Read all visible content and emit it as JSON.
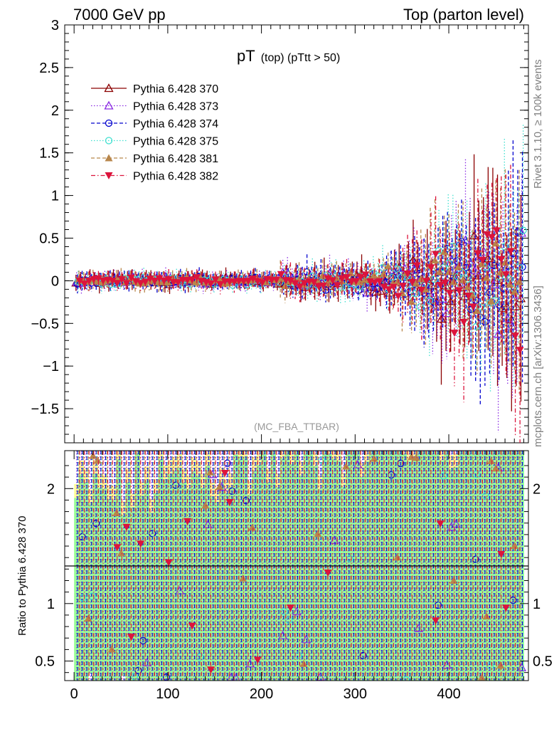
{
  "header": {
    "left": "7000 GeV pp",
    "right": "Top (parton level)"
  },
  "side_texts": {
    "upper": "Rivet 3.1.10, ≥ 100k events",
    "lower": "mcplots.cern.ch [arXiv:1306.3436]"
  },
  "chart_data": [
    {
      "type": "scatter",
      "title": "pT",
      "title_sub": "(top)  (pTtt > 50)",
      "analysis_label": "(MC_FBA_TTBAR)",
      "xlim": [
        -10,
        485
      ],
      "ylim": [
        -1.9,
        3.0
      ],
      "y_ticks": [
        3,
        2.5,
        2,
        1.5,
        1,
        0.5,
        0,
        -0.5,
        -1,
        -1.5
      ],
      "y_tick_labels": [
        "3",
        "2.5",
        "2",
        "1.5",
        "1",
        "0.5",
        "0",
        "−0.5",
        "−1",
        "−1.5"
      ],
      "legend_position": "top-left",
      "series": [
        {
          "name": "Pythia 6.428 370",
          "color": "#8b0000",
          "marker": "triangle-up-open",
          "dash": "solid"
        },
        {
          "name": "Pythia 6.428 373",
          "color": "#8a2be2",
          "marker": "triangle-up-open",
          "dash": "dot"
        },
        {
          "name": "Pythia 6.428 374",
          "color": "#0000cd",
          "marker": "circle-open",
          "dash": "dash"
        },
        {
          "name": "Pythia 6.428 375",
          "color": "#40e0d0",
          "marker": "circle-open",
          "dash": "dot"
        },
        {
          "name": "Pythia 6.428 381",
          "color": "#b8864b",
          "marker": "triangle-up-filled",
          "dash": "dash"
        },
        {
          "name": "Pythia 6.428 382",
          "color": "#dc143c",
          "marker": "triangle-down-filled",
          "dash": "dashdot"
        }
      ]
    },
    {
      "type": "scatter",
      "ylabel": "Ratio to Pythia 6.428 370",
      "xlim": [
        -10,
        485
      ],
      "ylim": [
        0.33,
        2.33
      ],
      "x_ticks": [
        0,
        100,
        200,
        300,
        400
      ],
      "x_tick_labels": [
        "0",
        "100",
        "200",
        "300",
        "400"
      ],
      "y_ticks": [
        0.5,
        1,
        2
      ],
      "y_tick_labels": [
        "0.5",
        "1",
        "2"
      ],
      "reference_line": 1
    }
  ]
}
